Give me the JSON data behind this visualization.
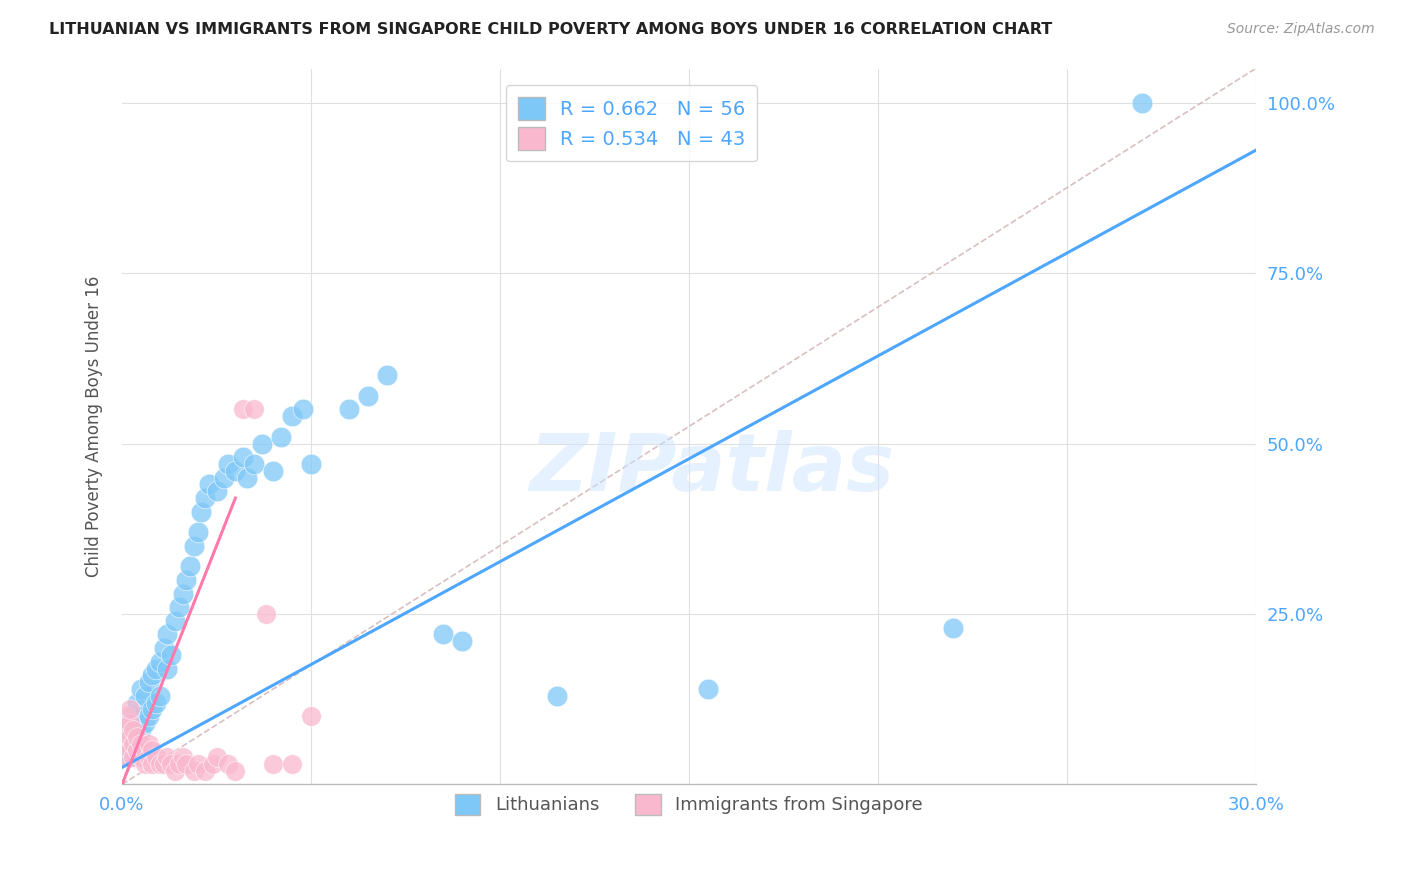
{
  "title": "LITHUANIAN VS IMMIGRANTS FROM SINGAPORE CHILD POVERTY AMONG BOYS UNDER 16 CORRELATION CHART",
  "source": "Source: ZipAtlas.com",
  "ylabel": "Child Poverty Among Boys Under 16",
  "xmin": 0.0,
  "xmax": 0.3,
  "ymin": 0.0,
  "ymax": 1.05,
  "xticks": [
    0.0,
    0.05,
    0.1,
    0.15,
    0.2,
    0.25,
    0.3
  ],
  "xticklabels": [
    "0.0%",
    "",
    "",
    "",
    "",
    "",
    "30.0%"
  ],
  "yticks": [
    0.0,
    0.25,
    0.5,
    0.75,
    1.0
  ],
  "yticklabels_right": [
    "",
    "25.0%",
    "50.0%",
    "75.0%",
    "100.0%"
  ],
  "blue_R": 0.662,
  "blue_N": 56,
  "pink_R": 0.534,
  "pink_N": 43,
  "blue_color": "#7ec8f7",
  "pink_color": "#f9b8ce",
  "blue_line_color": "#4da6ff",
  "pink_line_color": "#ff7aaa",
  "grid_color": "#e0e0e0",
  "watermark": "ZIPatlas",
  "blue_scatter_x": [
    0.001,
    0.002,
    0.002,
    0.003,
    0.003,
    0.004,
    0.004,
    0.005,
    0.005,
    0.005,
    0.006,
    0.006,
    0.007,
    0.007,
    0.008,
    0.008,
    0.009,
    0.009,
    0.01,
    0.01,
    0.011,
    0.012,
    0.012,
    0.013,
    0.014,
    0.015,
    0.016,
    0.017,
    0.018,
    0.019,
    0.02,
    0.021,
    0.022,
    0.023,
    0.025,
    0.027,
    0.028,
    0.03,
    0.032,
    0.033,
    0.035,
    0.037,
    0.04,
    0.042,
    0.045,
    0.048,
    0.05,
    0.06,
    0.065,
    0.07,
    0.085,
    0.09,
    0.115,
    0.155,
    0.22,
    0.27
  ],
  "blue_scatter_y": [
    0.05,
    0.04,
    0.08,
    0.06,
    0.1,
    0.07,
    0.12,
    0.08,
    0.1,
    0.14,
    0.09,
    0.13,
    0.1,
    0.15,
    0.11,
    0.16,
    0.12,
    0.17,
    0.13,
    0.18,
    0.2,
    0.17,
    0.22,
    0.19,
    0.24,
    0.26,
    0.28,
    0.3,
    0.32,
    0.35,
    0.37,
    0.4,
    0.42,
    0.44,
    0.43,
    0.45,
    0.47,
    0.46,
    0.48,
    0.45,
    0.47,
    0.5,
    0.46,
    0.51,
    0.54,
    0.55,
    0.47,
    0.55,
    0.57,
    0.6,
    0.22,
    0.21,
    0.13,
    0.14,
    0.23,
    1.0
  ],
  "pink_scatter_x": [
    0.001,
    0.001,
    0.001,
    0.001,
    0.002,
    0.002,
    0.002,
    0.002,
    0.003,
    0.003,
    0.003,
    0.004,
    0.004,
    0.005,
    0.005,
    0.006,
    0.006,
    0.007,
    0.007,
    0.008,
    0.008,
    0.009,
    0.01,
    0.011,
    0.012,
    0.013,
    0.014,
    0.015,
    0.016,
    0.017,
    0.019,
    0.02,
    0.022,
    0.024,
    0.025,
    0.028,
    0.03,
    0.032,
    0.035,
    0.038,
    0.04,
    0.045,
    0.05
  ],
  "pink_scatter_y": [
    0.04,
    0.06,
    0.08,
    0.1,
    0.05,
    0.07,
    0.09,
    0.11,
    0.04,
    0.06,
    0.08,
    0.05,
    0.07,
    0.04,
    0.06,
    0.03,
    0.05,
    0.04,
    0.06,
    0.03,
    0.05,
    0.04,
    0.03,
    0.03,
    0.04,
    0.03,
    0.02,
    0.03,
    0.04,
    0.03,
    0.02,
    0.03,
    0.02,
    0.03,
    0.04,
    0.03,
    0.02,
    0.55,
    0.55,
    0.25,
    0.03,
    0.03,
    0.1
  ],
  "blue_line_x": [
    0.0,
    0.3
  ],
  "blue_line_y": [
    0.025,
    0.93
  ],
  "pink_line_x": [
    0.0,
    0.03
  ],
  "pink_line_y": [
    0.0,
    0.42
  ],
  "diag_line_x": [
    0.0,
    0.3
  ],
  "diag_line_y": [
    0.0,
    1.05
  ]
}
